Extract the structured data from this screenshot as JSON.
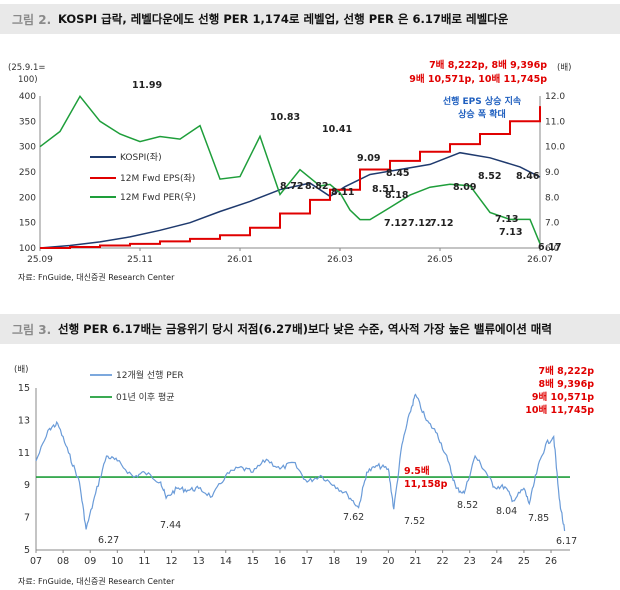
{
  "fig1": {
    "number": "그림 2.",
    "title": "KOSPI 급락, 레벨다운에도 선행 PER 1,174로 레벨업, 선행 PER 은 6.17배로 레벨다운",
    "source": "자료: FnGuide, 대신증권 Research Center",
    "left_unit": [
      "(25.9.1=",
      "100)"
    ],
    "right_unit": "(배)",
    "legend": [
      "KOSPI(좌)",
      "12M Fwd EPS(좌)",
      "12M Fwd PER(우)"
    ],
    "annot_red": [
      "7배 8,222p, 8배 9,396p",
      "9배 10,571p, 10배 11,745p"
    ],
    "annot_blue": [
      "선행 EPS 상승 지속",
      "상승 폭 확대"
    ],
    "per_labels": [
      "11.99",
      "10.83",
      "10.41",
      "9.09",
      "8.72",
      "8.82",
      "8.11",
      "8.45",
      "8.51",
      "8.18",
      "7.12",
      "7.12",
      "7.12",
      "8.09",
      "8.52",
      "8.46",
      "7.13",
      "7.13",
      "6.17"
    ],
    "colors": {
      "kospi": "#1f3a6e",
      "eps": "#e00000",
      "per": "#1e9e3a",
      "annot_blue": "#1f5fbf",
      "annot_red": "#e00000"
    },
    "chart_data": {
      "type": "line",
      "x_ticks": [
        "25.09",
        "25.11",
        "26.01",
        "26.03",
        "26.05",
        "26.07"
      ],
      "y_left": {
        "min": 100,
        "max": 400,
        "ticks": [
          100,
          150,
          200,
          250,
          300,
          350,
          400
        ]
      },
      "y_right": {
        "min": 6.0,
        "max": 12.0,
        "ticks": [
          6.0,
          7.0,
          8.0,
          9.0,
          10.0,
          11.0,
          12.0
        ]
      },
      "series": [
        {
          "name": "KOSPI(좌)",
          "axis": "left",
          "x": [
            0,
            6,
            12,
            18,
            24,
            30,
            36,
            42,
            48,
            54,
            58,
            61,
            66,
            72,
            78,
            84,
            90,
            96,
            100
          ],
          "values": [
            100,
            105,
            112,
            122,
            135,
            150,
            172,
            192,
            215,
            228,
            202,
            221,
            245,
            255,
            265,
            288,
            278,
            260,
            240
          ]
        },
        {
          "name": "12M Fwd EPS(좌)",
          "axis": "left",
          "x": [
            0,
            6,
            12,
            18,
            24,
            30,
            36,
            42,
            48,
            54,
            58,
            64,
            70,
            76,
            82,
            88,
            94,
            100
          ],
          "values": [
            100,
            102,
            105,
            108,
            113,
            118,
            125,
            140,
            168,
            195,
            215,
            255,
            272,
            290,
            305,
            325,
            350,
            380
          ]
        },
        {
          "name": "12M Fwd PER(우)",
          "axis": "right",
          "x": [
            0,
            4,
            8,
            12,
            16,
            20,
            24,
            28,
            32,
            36,
            40,
            44,
            48,
            52,
            56,
            58,
            60,
            62,
            64,
            66,
            70,
            74,
            78,
            82,
            86,
            90,
            94,
            98,
            100
          ],
          "values": [
            10.0,
            10.6,
            11.99,
            11.0,
            10.5,
            10.2,
            10.4,
            10.3,
            10.83,
            8.72,
            8.82,
            10.41,
            8.11,
            9.09,
            8.45,
            8.51,
            8.18,
            7.5,
            7.12,
            7.12,
            7.6,
            8.09,
            8.4,
            8.52,
            8.46,
            7.4,
            7.13,
            7.13,
            6.17
          ]
        }
      ]
    }
  },
  "fig2": {
    "number": "그림 3.",
    "title": "선행 PER 6.17배는 금융위기 당시 저점(6.27배)보다 낮은 수준, 역사적 가장 높은 밸류에이션 매력",
    "source": "자료: FnGuide, 대신증권 Research Center",
    "unit": "(배)",
    "legend": [
      "12개월 선행 PER",
      "01년 이후 평균"
    ],
    "annot_red": [
      "7배 8,222p",
      "8배 9,396p",
      "9배  10,571p",
      "10배 11,745p"
    ],
    "avg_label": [
      "9.5배",
      "11,158p"
    ],
    "low_labels": [
      "6.27",
      "7.44",
      "7.62",
      "7.52",
      "8.52",
      "8.04",
      "7.85",
      "6.17"
    ],
    "colors": {
      "per": "#6a9bd8",
      "avg": "#1e9e3a",
      "annot_red": "#e00000"
    },
    "chart_data": {
      "type": "line",
      "x_ticks": [
        "07",
        "08",
        "09",
        "10",
        "11",
        "12",
        "13",
        "14",
        "15",
        "16",
        "17",
        "18",
        "19",
        "20",
        "21",
        "22",
        "23",
        "24",
        "25",
        "26"
      ],
      "y": {
        "min": 5,
        "max": 15,
        "ticks": [
          5,
          7,
          9,
          11,
          13,
          15
        ]
      },
      "average": 9.5,
      "series": [
        {
          "name": "12개월 선행 PER",
          "x": [
            2007.0,
            2007.5,
            2007.8,
            2008.2,
            2008.6,
            2008.85,
            2009.2,
            2009.6,
            2010.0,
            2010.6,
            2011.0,
            2011.6,
            2011.8,
            2012.2,
            2012.6,
            2013.0,
            2013.5,
            2014.0,
            2014.5,
            2015.0,
            2015.5,
            2016.0,
            2016.5,
            2017.0,
            2017.5,
            2018.0,
            2018.5,
            2018.9,
            2019.2,
            2019.6,
            2020.0,
            2020.2,
            2020.5,
            2020.8,
            2021.0,
            2021.4,
            2021.8,
            2022.2,
            2022.5,
            2022.8,
            2023.2,
            2023.6,
            2023.9,
            2024.3,
            2024.6,
            2025.0,
            2025.2,
            2025.5,
            2025.8,
            2026.1,
            2026.3,
            2026.5
          ],
          "values": [
            10.5,
            12.5,
            12.8,
            11.0,
            9.2,
            6.27,
            8.5,
            10.8,
            10.5,
            9.5,
            9.8,
            9.2,
            8.2,
            8.8,
            8.7,
            8.8,
            8.3,
            9.6,
            10.1,
            9.8,
            10.6,
            10.0,
            10.4,
            9.2,
            9.6,
            9.0,
            8.4,
            7.62,
            9.8,
            10.2,
            10.0,
            7.52,
            11.5,
            13.5,
            14.6,
            13.0,
            12.2,
            10.5,
            8.8,
            8.52,
            10.8,
            9.8,
            8.9,
            8.9,
            8.04,
            8.8,
            7.85,
            10.0,
            11.5,
            12.0,
            8.2,
            6.17
          ]
        }
      ]
    }
  }
}
